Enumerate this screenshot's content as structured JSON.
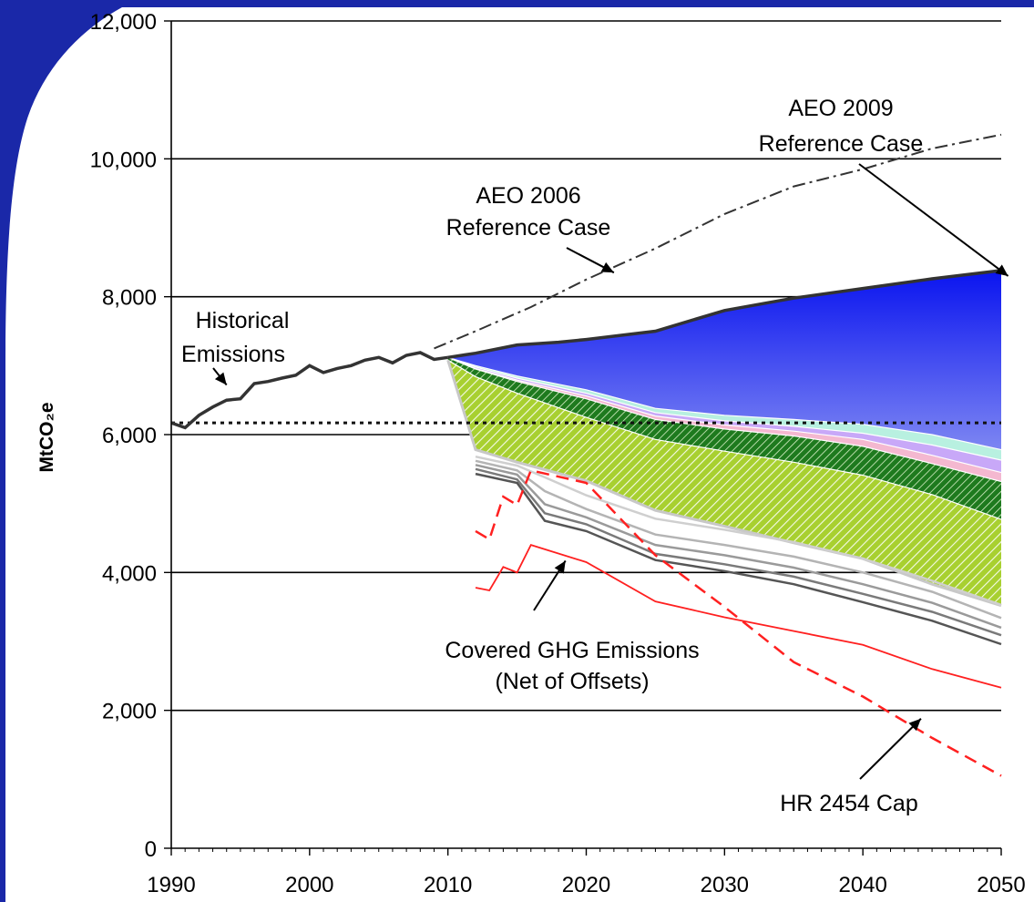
{
  "chart_data": {
    "type": "area",
    "xlabel": "",
    "ylabel": "MtCO₂e",
    "xlim": [
      1990,
      2050
    ],
    "ylim": [
      0,
      12000
    ],
    "x_ticks": [
      "1990",
      "2000",
      "2010",
      "2020",
      "2030",
      "2040",
      "2050"
    ],
    "y_ticks": [
      "0",
      "2,000",
      "4,000",
      "6,000",
      "8,000",
      "10,000",
      "12,000"
    ],
    "grid": "horizontal",
    "series": [
      {
        "name": "Historical Emissions",
        "style": "solid-dark",
        "x": [
          1990,
          1991,
          1992,
          1993,
          1994,
          1995,
          1996,
          1997,
          1998,
          1999,
          2000,
          2001,
          2002,
          2003,
          2004,
          2005,
          2006,
          2007,
          2008,
          2009,
          2010
        ],
        "y": [
          6170,
          6100,
          6280,
          6400,
          6500,
          6520,
          6740,
          6770,
          6820,
          6860,
          7000,
          6900,
          6960,
          7000,
          7080,
          7120,
          7040,
          7150,
          7190,
          7090,
          7120
        ]
      },
      {
        "name": "AEO 2006 Reference Case",
        "style": "dash-dot",
        "x": [
          2009,
          2012,
          2016,
          2020,
          2025,
          2030,
          2035,
          2040,
          2045,
          2050
        ],
        "y": [
          7250,
          7500,
          7850,
          8250,
          8700,
          9200,
          9600,
          9850,
          10150,
          10350
        ]
      },
      {
        "name": "AEO 2009 Reference Case",
        "style": "solid-dark-top-of-blue",
        "x": [
          2010,
          2012,
          2015,
          2018,
          2020,
          2025,
          2030,
          2035,
          2040,
          2045,
          2050
        ],
        "y": [
          7120,
          7180,
          7300,
          7340,
          7380,
          7500,
          7800,
          7980,
          8120,
          8260,
          8380
        ]
      },
      {
        "name": "Covered GHG Emissions (Net of Offsets)",
        "style": "solid-gray",
        "x": [
          2012,
          2015,
          2017,
          2020,
          2025,
          2030,
          2035,
          2040,
          2045,
          2050
        ],
        "y": [
          5430,
          5300,
          4750,
          4600,
          4180,
          4020,
          3830,
          3570,
          3300,
          2960
        ]
      },
      {
        "name": "HR 2454 Cap",
        "style": "dashed-red",
        "x": [
          2012,
          2013,
          2014,
          2015,
          2016,
          2020,
          2025,
          2030,
          2035,
          2040,
          2045,
          2050
        ],
        "y": [
          4600,
          4480,
          5100,
          4980,
          5480,
          5300,
          4250,
          3500,
          2700,
          2200,
          1600,
          1050
        ]
      },
      {
        "name": "",
        "style": "solid-red",
        "x": [
          2012,
          2013,
          2014,
          2015,
          2016,
          2020,
          2025,
          2030,
          2035,
          2040,
          2045,
          2050
        ],
        "y": [
          3780,
          3740,
          4080,
          4000,
          4400,
          4150,
          3580,
          3350,
          3150,
          2950,
          2600,
          2330
        ]
      }
    ],
    "reference_line": {
      "y": 6170,
      "style": "dotted"
    },
    "bands": {
      "x": [
        2010,
        2012,
        2015,
        2020,
        2025,
        2030,
        2035,
        2040,
        2045,
        2050
      ],
      "blue_bottom": [
        7120,
        7000,
        6850,
        6650,
        6380,
        6280,
        6220,
        6150,
        6000,
        5780
      ],
      "cyan_bottom": [
        7120,
        6980,
        6820,
        6600,
        6320,
        6200,
        6120,
        6020,
        5850,
        5630
      ],
      "lavender_bottom": [
        7120,
        6960,
        6790,
        6560,
        6270,
        6140,
        6050,
        5930,
        5700,
        5450
      ],
      "pink_bottom": [
        7120,
        6950,
        6770,
        6520,
        6220,
        6080,
        5980,
        5830,
        5580,
        5320
      ],
      "darkgreen_bottom": [
        7080,
        6840,
        6600,
        6250,
        5930,
        5760,
        5600,
        5410,
        5130,
        4770
      ],
      "lightgreen_bottom": [
        7080,
        5780,
        5600,
        5330,
        4900,
        4670,
        4430,
        4200,
        3830,
        3520
      ]
    },
    "gray_lines": [
      {
        "x": [
          2012,
          2015,
          2017,
          2020,
          2025,
          2030,
          2035,
          2040,
          2045,
          2050
        ],
        "y": [
          5500,
          5350,
          4860,
          4700,
          4270,
          4120,
          3940,
          3690,
          3430,
          3090
        ]
      },
      {
        "x": [
          2012,
          2015,
          2017,
          2020,
          2025,
          2030,
          2035,
          2040,
          2045,
          2050
        ],
        "y": [
          5560,
          5420,
          4990,
          4800,
          4400,
          4250,
          4070,
          3830,
          3560,
          3200
        ]
      },
      {
        "x": [
          2012,
          2015,
          2017,
          2020,
          2025,
          2030,
          2035,
          2040,
          2045,
          2050
        ],
        "y": [
          5620,
          5480,
          5180,
          4920,
          4550,
          4400,
          4230,
          4000,
          3720,
          3340
        ]
      },
      {
        "x": [
          2012,
          2015,
          2017,
          2020,
          2025,
          2030,
          2035,
          2040,
          2045,
          2050
        ],
        "y": [
          5680,
          5550,
          5380,
          5120,
          4780,
          4620,
          4440,
          4200,
          3880,
          3530
        ]
      }
    ],
    "annotations": {
      "aeo2009_line1": "AEO 2009",
      "aeo2009_line2": "Reference Case",
      "aeo2006_line1": "AEO 2006",
      "aeo2006_line2": "Reference Case",
      "historical_line1": "Historical",
      "historical_line2": "Emissions",
      "covered_line1": "Covered GHG Emissions",
      "covered_line2": "(Net of Offsets)",
      "cap": "HR 2454 Cap"
    },
    "colors": {
      "blue_top": "#0a14f0",
      "blue_bottom": "#7d86f2",
      "cyan": "#b8f0e0",
      "lavender": "#c8a8f8",
      "pink": "#f4b8d0",
      "dark_green": "#1e7a1e",
      "light_green": "#a8d030",
      "red": "#ff2020",
      "dark_line": "#333333",
      "frame_blue": "#1a28a8"
    }
  }
}
